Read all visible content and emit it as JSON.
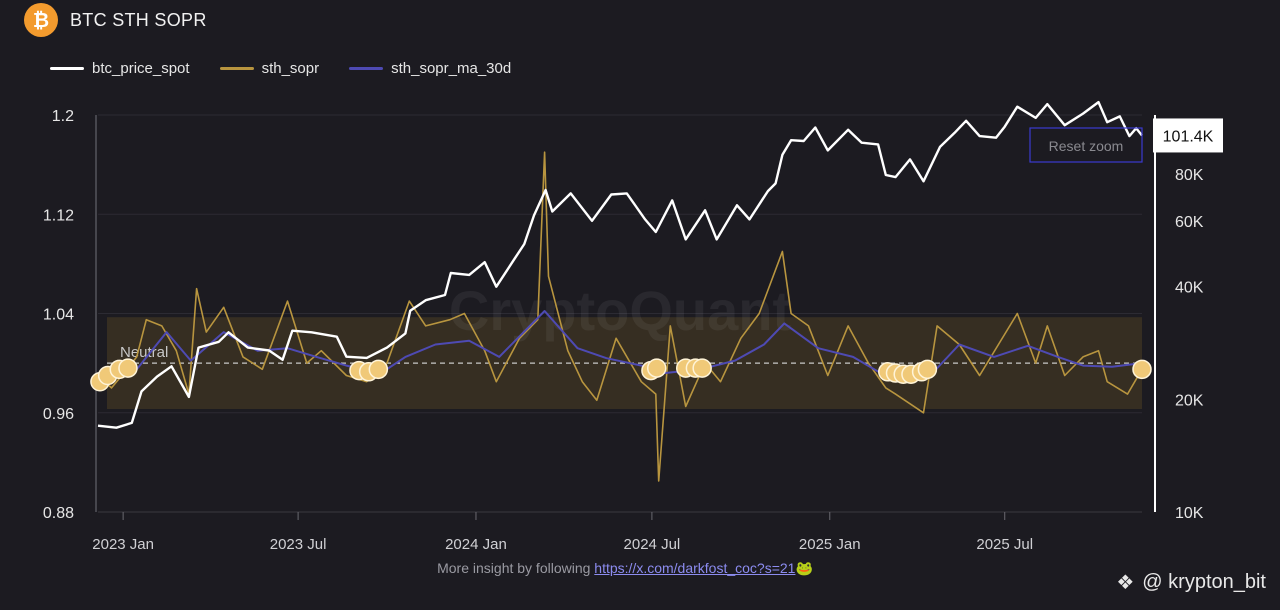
{
  "header": {
    "logo_symbol": "₿",
    "title": "BTC STH SOPR"
  },
  "footer": {
    "text": "More insight by following",
    "link": "https://x.com/darkfost_coc?s=21",
    "emoji": "🐸"
  },
  "credit": {
    "icon": "❖",
    "handle": "@ krypton_bit"
  },
  "chart_data": {
    "type": "line",
    "title": "BTC STH SOPR",
    "watermark": "CryptoQuant",
    "reset_zoom_label": "Reset zoom",
    "legend_placement": "top-left",
    "neutral_label": "Neutral",
    "neutral_level": 1.0,
    "band": [
      0.963,
      1.037
    ],
    "x_range": [
      "2022-12-06",
      "2025-11-20"
    ],
    "x_ticks": [
      {
        "label": "2023 Jan",
        "date": "2023-01-01"
      },
      {
        "label": "2023 Jul",
        "date": "2023-07-01"
      },
      {
        "label": "2024 Jan",
        "date": "2024-01-01"
      },
      {
        "label": "2024 Jul",
        "date": "2024-07-01"
      },
      {
        "label": "2025 Jan",
        "date": "2025-01-01"
      },
      {
        "label": "2025 Jul",
        "date": "2025-07-01"
      }
    ],
    "y_left": {
      "range": [
        0.88,
        1.2
      ],
      "ticks": [
        "1.2",
        "1.12",
        "1.04",
        "0.96",
        "0.88"
      ]
    },
    "y_right": {
      "scale": "log",
      "range": [
        10000,
        115000
      ],
      "ticks": [
        {
          "label": "80K",
          "v": 80000
        },
        {
          "label": "60K",
          "v": 60000
        },
        {
          "label": "40K",
          "v": 40000
        },
        {
          "label": "20K",
          "v": 20000
        },
        {
          "label": "10K",
          "v": 10000
        }
      ],
      "last_value_label": "101.4K",
      "last_value": 101400
    },
    "series": [
      {
        "name": "btc_price_spot",
        "color": "#ffffff",
        "axis": "right",
        "points": [
          [
            "2022-12-06",
            17000
          ],
          [
            "2022-12-25",
            16800
          ],
          [
            "2023-01-10",
            17300
          ],
          [
            "2023-01-20",
            21000
          ],
          [
            "2023-02-05",
            23000
          ],
          [
            "2023-02-20",
            24500
          ],
          [
            "2023-03-10",
            20300
          ],
          [
            "2023-03-20",
            27500
          ],
          [
            "2023-04-10",
            28500
          ],
          [
            "2023-04-20",
            30200
          ],
          [
            "2023-05-10",
            27500
          ],
          [
            "2023-06-01",
            27000
          ],
          [
            "2023-06-15",
            25500
          ],
          [
            "2023-06-25",
            30500
          ],
          [
            "2023-07-15",
            30200
          ],
          [
            "2023-08-10",
            29400
          ],
          [
            "2023-08-20",
            26000
          ],
          [
            "2023-09-10",
            25800
          ],
          [
            "2023-10-01",
            27500
          ],
          [
            "2023-10-20",
            30000
          ],
          [
            "2023-10-25",
            34500
          ],
          [
            "2023-11-10",
            36800
          ],
          [
            "2023-11-30",
            38000
          ],
          [
            "2023-12-06",
            43500
          ],
          [
            "2023-12-25",
            43000
          ],
          [
            "2024-01-10",
            46500
          ],
          [
            "2024-01-22",
            40000
          ],
          [
            "2024-02-10",
            47500
          ],
          [
            "2024-02-20",
            52000
          ],
          [
            "2024-03-01",
            62000
          ],
          [
            "2024-03-13",
            72500
          ],
          [
            "2024-03-20",
            63500
          ],
          [
            "2024-04-08",
            71000
          ],
          [
            "2024-04-30",
            60000
          ],
          [
            "2024-05-20",
            70500
          ],
          [
            "2024-06-05",
            71000
          ],
          [
            "2024-06-24",
            60500
          ],
          [
            "2024-07-05",
            56000
          ],
          [
            "2024-07-22",
            68000
          ],
          [
            "2024-08-05",
            53500
          ],
          [
            "2024-08-25",
            64000
          ],
          [
            "2024-09-06",
            53500
          ],
          [
            "2024-09-27",
            66000
          ],
          [
            "2024-10-10",
            60500
          ],
          [
            "2024-10-29",
            72000
          ],
          [
            "2024-11-06",
            75500
          ],
          [
            "2024-11-13",
            90000
          ],
          [
            "2024-11-22",
            98500
          ],
          [
            "2024-12-05",
            98000
          ],
          [
            "2024-12-17",
            106500
          ],
          [
            "2024-12-30",
            92500
          ],
          [
            "2025-01-20",
            105000
          ],
          [
            "2025-02-03",
            97000
          ],
          [
            "2025-02-20",
            96000
          ],
          [
            "2025-02-28",
            79500
          ],
          [
            "2025-03-10",
            78500
          ],
          [
            "2025-03-25",
            87500
          ],
          [
            "2025-04-08",
            76500
          ],
          [
            "2025-04-25",
            94500
          ],
          [
            "2025-05-10",
            103000
          ],
          [
            "2025-05-22",
            111000
          ],
          [
            "2025-06-05",
            101000
          ],
          [
            "2025-06-22",
            100000
          ],
          [
            "2025-07-01",
            107000
          ],
          [
            "2025-07-14",
            121000
          ],
          [
            "2025-08-02",
            113000
          ],
          [
            "2025-08-14",
            123000
          ],
          [
            "2025-09-01",
            108000
          ],
          [
            "2025-09-20",
            116000
          ],
          [
            "2025-10-06",
            124500
          ],
          [
            "2025-10-15",
            110000
          ],
          [
            "2025-10-28",
            114000
          ],
          [
            "2025-11-07",
            101000
          ],
          [
            "2025-11-14",
            106000
          ],
          [
            "2025-11-20",
            101400
          ]
        ]
      },
      {
        "name": "sth_sopr",
        "color": "#b8953f",
        "axis": "left",
        "points": [
          [
            "2022-12-06",
            0.99
          ],
          [
            "2022-12-20",
            0.98
          ],
          [
            "2023-01-05",
            0.995
          ],
          [
            "2023-01-15",
            1.005
          ],
          [
            "2023-01-25",
            1.035
          ],
          [
            "2023-02-10",
            1.03
          ],
          [
            "2023-02-25",
            1.01
          ],
          [
            "2023-03-10",
            0.975
          ],
          [
            "2023-03-18",
            1.06
          ],
          [
            "2023-03-28",
            1.025
          ],
          [
            "2023-04-15",
            1.045
          ],
          [
            "2023-05-05",
            1.005
          ],
          [
            "2023-05-25",
            0.995
          ],
          [
            "2023-06-20",
            1.05
          ],
          [
            "2023-07-10",
            1.0
          ],
          [
            "2023-07-25",
            1.01
          ],
          [
            "2023-08-20",
            0.99
          ],
          [
            "2023-09-10",
            0.985
          ],
          [
            "2023-10-01",
            1.0
          ],
          [
            "2023-10-24",
            1.05
          ],
          [
            "2023-11-10",
            1.03
          ],
          [
            "2023-12-05",
            1.035
          ],
          [
            "2023-12-20",
            1.04
          ],
          [
            "2024-01-10",
            1.01
          ],
          [
            "2024-01-22",
            0.985
          ],
          [
            "2024-02-15",
            1.02
          ],
          [
            "2024-03-05",
            1.035
          ],
          [
            "2024-03-12",
            1.17
          ],
          [
            "2024-03-16",
            1.07
          ],
          [
            "2024-04-05",
            1.01
          ],
          [
            "2024-04-20",
            0.985
          ],
          [
            "2024-05-05",
            0.97
          ],
          [
            "2024-05-25",
            1.02
          ],
          [
            "2024-06-20",
            0.985
          ],
          [
            "2024-07-05",
            0.975
          ],
          [
            "2024-07-08",
            0.905
          ],
          [
            "2024-07-20",
            1.03
          ],
          [
            "2024-08-05",
            0.965
          ],
          [
            "2024-08-25",
            1.0
          ],
          [
            "2024-09-10",
            0.985
          ],
          [
            "2024-10-01",
            1.02
          ],
          [
            "2024-10-20",
            1.04
          ],
          [
            "2024-11-13",
            1.09
          ],
          [
            "2024-11-22",
            1.04
          ],
          [
            "2024-12-10",
            1.03
          ],
          [
            "2024-12-30",
            0.99
          ],
          [
            "2025-01-20",
            1.03
          ],
          [
            "2025-02-10",
            1.0
          ],
          [
            "2025-02-28",
            0.98
          ],
          [
            "2025-03-10",
            0.975
          ],
          [
            "2025-04-08",
            0.96
          ],
          [
            "2025-04-22",
            1.03
          ],
          [
            "2025-05-15",
            1.015
          ],
          [
            "2025-06-05",
            0.99
          ],
          [
            "2025-07-14",
            1.04
          ],
          [
            "2025-08-02",
            1.0
          ],
          [
            "2025-08-14",
            1.03
          ],
          [
            "2025-09-01",
            0.99
          ],
          [
            "2025-09-20",
            1.005
          ],
          [
            "2025-10-06",
            1.01
          ],
          [
            "2025-10-15",
            0.985
          ],
          [
            "2025-11-05",
            0.975
          ],
          [
            "2025-11-20",
            0.995
          ]
        ]
      },
      {
        "name": "sth_sopr_ma_30d",
        "color": "#4e4ab3",
        "axis": "left",
        "points": [
          [
            "2022-12-06",
            0.988
          ],
          [
            "2023-01-10",
            0.99
          ],
          [
            "2023-02-15",
            1.025
          ],
          [
            "2023-03-12",
            1.002
          ],
          [
            "2023-04-15",
            1.025
          ],
          [
            "2023-05-20",
            1.01
          ],
          [
            "2023-06-20",
            1.012
          ],
          [
            "2023-07-20",
            1.005
          ],
          [
            "2023-08-20",
            0.998
          ],
          [
            "2023-09-25",
            0.992
          ],
          [
            "2023-10-20",
            1.005
          ],
          [
            "2023-11-20",
            1.015
          ],
          [
            "2023-12-25",
            1.018
          ],
          [
            "2024-01-25",
            1.005
          ],
          [
            "2024-03-12",
            1.042
          ],
          [
            "2024-04-15",
            1.012
          ],
          [
            "2024-05-15",
            1.004
          ],
          [
            "2024-06-20",
            0.998
          ],
          [
            "2024-07-15",
            0.992
          ],
          [
            "2024-08-20",
            0.995
          ],
          [
            "2024-09-25",
            1.002
          ],
          [
            "2024-10-25",
            1.015
          ],
          [
            "2024-11-15",
            1.032
          ],
          [
            "2024-12-20",
            1.012
          ],
          [
            "2025-01-25",
            1.005
          ],
          [
            "2025-03-10",
            0.985
          ],
          [
            "2025-04-15",
            0.99
          ],
          [
            "2025-05-15",
            1.015
          ],
          [
            "2025-06-20",
            1.005
          ],
          [
            "2025-07-25",
            1.014
          ],
          [
            "2025-08-25",
            1.005
          ],
          [
            "2025-09-20",
            0.998
          ],
          [
            "2025-10-20",
            0.997
          ],
          [
            "2025-11-20",
            1.0
          ]
        ]
      }
    ],
    "signal_markers": [
      [
        "2022-12-08",
        0.985
      ],
      [
        "2022-12-16",
        0.99
      ],
      [
        "2022-12-28",
        0.995
      ],
      [
        "2023-01-06",
        0.996
      ],
      [
        "2023-09-02",
        0.994
      ],
      [
        "2023-09-12",
        0.993
      ],
      [
        "2023-09-22",
        0.995
      ],
      [
        "2024-06-30",
        0.994
      ],
      [
        "2024-07-06",
        0.996
      ],
      [
        "2024-08-05",
        0.996
      ],
      [
        "2024-08-15",
        0.996
      ],
      [
        "2024-08-22",
        0.996
      ],
      [
        "2025-03-02",
        0.993
      ],
      [
        "2025-03-10",
        0.992
      ],
      [
        "2025-03-18",
        0.991
      ],
      [
        "2025-03-26",
        0.991
      ],
      [
        "2025-04-06",
        0.993
      ],
      [
        "2025-04-12",
        0.995
      ],
      [
        "2025-11-20",
        0.995
      ]
    ]
  }
}
